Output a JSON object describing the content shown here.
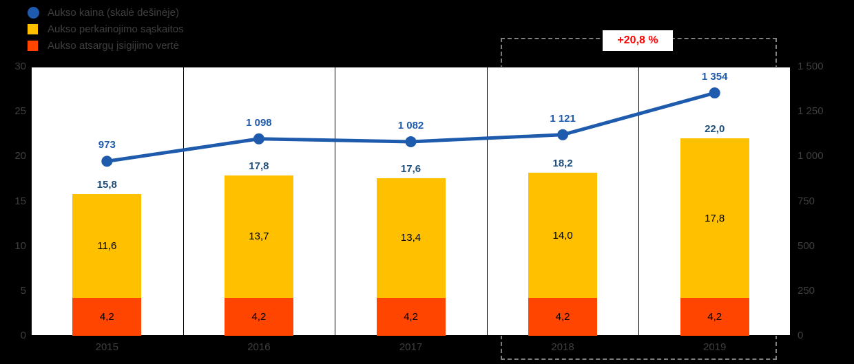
{
  "colors": {
    "background": "#000000",
    "plot_background": "#FFFFFF",
    "line_blue": "#1F5BAD",
    "bar_yellow": "#FFC000",
    "bar_orange_red": "#FF4500",
    "total_label": "#1F4E79",
    "axis_text": "#3F3F3F",
    "annotation_red": "#FF0000",
    "highlight_dash": "#7F7F7F"
  },
  "legend": {
    "items": [
      {
        "label": "Aukso kaina (skalė dešinėje)",
        "marker": "circle-icon",
        "color": "#1F5BAD"
      },
      {
        "label": "Aukso perkainojimo sąskaitos",
        "marker": "square-icon",
        "color": "#FFC000"
      },
      {
        "label": "Aukso atsargų įsigijimo vertė",
        "marker": "square-icon",
        "color": "#FF4500"
      }
    ]
  },
  "annotation": {
    "text": "+20,8 %",
    "color": "#FF0000"
  },
  "chart_data": {
    "type": "bar",
    "subtype": "stacked bars with line on secondary axis",
    "categories": [
      "2015",
      "2016",
      "2017",
      "2018",
      "2019"
    ],
    "series": [
      {
        "name": "Aukso atsargų įsigijimo vertė",
        "type": "bar",
        "axis": "left",
        "color": "#FF4500",
        "values": [
          4.2,
          4.2,
          4.2,
          4.2,
          4.2
        ],
        "labels": [
          "4,2",
          "4,2",
          "4,2",
          "4,2",
          "4,2"
        ]
      },
      {
        "name": "Aukso perkainojimo sąskaitos",
        "type": "bar",
        "axis": "left",
        "color": "#FFC000",
        "values": [
          11.6,
          13.7,
          13.4,
          14.0,
          17.8
        ],
        "labels": [
          "11,6",
          "13,7",
          "13,4",
          "14,0",
          "17,8"
        ]
      },
      {
        "name": "Aukso kaina (skalė dešinėje)",
        "type": "line",
        "axis": "right",
        "color": "#1F5BAD",
        "values": [
          973,
          1098,
          1082,
          1121,
          1354
        ],
        "labels": [
          "973",
          "1 098",
          "1 082",
          "1 121",
          "1 354"
        ]
      }
    ],
    "totals": {
      "values": [
        15.8,
        17.8,
        17.6,
        18.2,
        22.0
      ],
      "labels": [
        "15,8",
        "17,8",
        "17,6",
        "18,2",
        "22,0"
      ]
    },
    "left_axis": {
      "min": 0,
      "max": 30,
      "ticks": [
        0,
        5,
        10,
        15,
        20,
        25,
        30
      ],
      "labels": [
        "0",
        "5",
        "10",
        "15",
        "20",
        "25",
        "30"
      ]
    },
    "right_axis": {
      "min": 0,
      "max": 1500,
      "ticks": [
        0,
        250,
        500,
        750,
        1000,
        1250,
        1500
      ],
      "labels": [
        "0",
        "250",
        "500",
        "750",
        "1 000",
        "1 250",
        "1 500"
      ]
    },
    "grid": "vertical category separators",
    "legend_position": "top-left",
    "highlight": {
      "categories": [
        "2018",
        "2019"
      ],
      "annotation": "+20,8 %"
    }
  }
}
